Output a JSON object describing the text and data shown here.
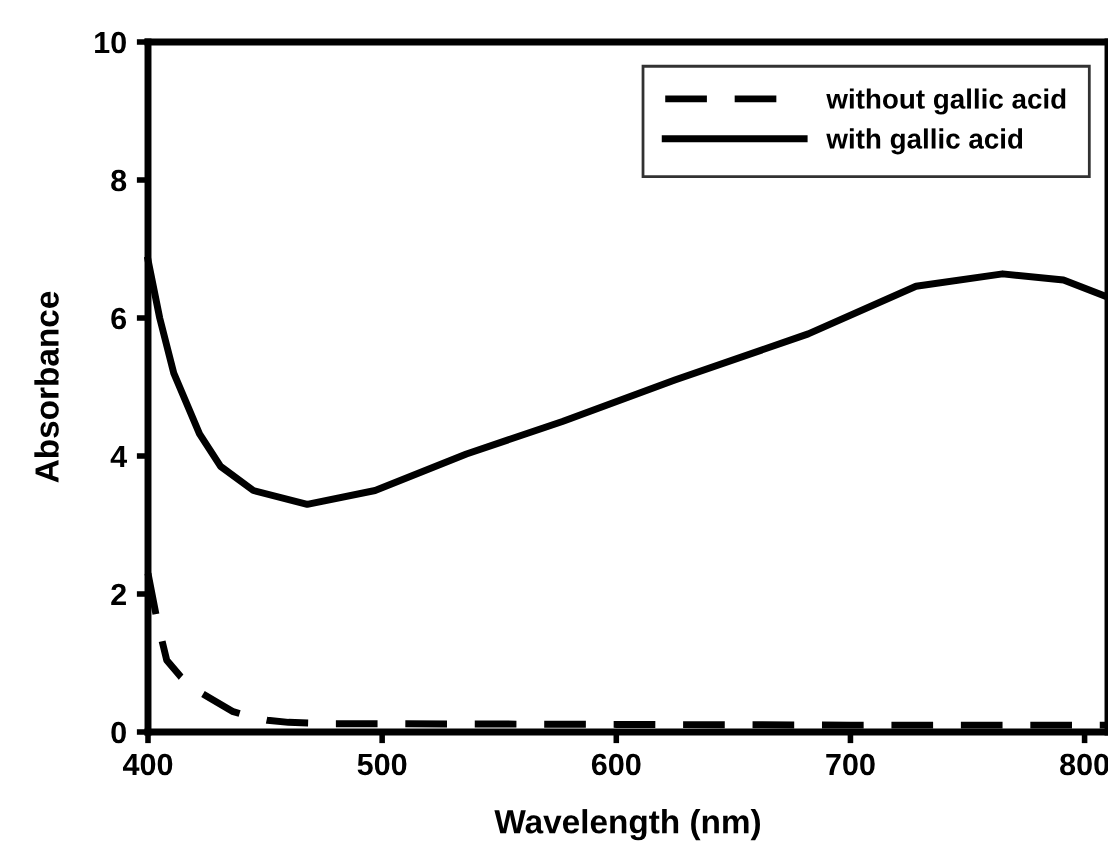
{
  "chart_data": {
    "type": "line",
    "xlabel": "Wavelength (nm)",
    "ylabel": "Absorbance",
    "xlim": [
      400,
      810
    ],
    "xticks": [
      400,
      500,
      600,
      700,
      800
    ],
    "ylim": [
      0,
      10
    ],
    "yticks": [
      0,
      2,
      4,
      6,
      8,
      10
    ],
    "grid": false,
    "legend": "top right",
    "marker": "none",
    "series": [
      {
        "name": "without gallic acid",
        "color": "#000000",
        "line_style": "dashed",
        "x": [
          400,
          404,
          408,
          414,
          420,
          428,
          436,
          444,
          451,
          460,
          480,
          500,
          600,
          700,
          810
        ],
        "values": [
          2.3,
          1.6,
          1.04,
          0.8,
          0.62,
          0.46,
          0.3,
          0.22,
          0.17,
          0.14,
          0.12,
          0.12,
          0.11,
          0.1,
          0.1
        ]
      },
      {
        "name": "with gallic acid",
        "color": "#000000",
        "line_style": "solid",
        "x": [
          400,
          405,
          411,
          422,
          431,
          445,
          468,
          497,
          536,
          577,
          625,
          682,
          728,
          765,
          791,
          810
        ],
        "values": [
          6.84,
          6.0,
          5.2,
          4.32,
          3.85,
          3.5,
          3.3,
          3.5,
          4.03,
          4.5,
          5.1,
          5.77,
          6.46,
          6.64,
          6.55,
          6.3
        ]
      }
    ]
  }
}
